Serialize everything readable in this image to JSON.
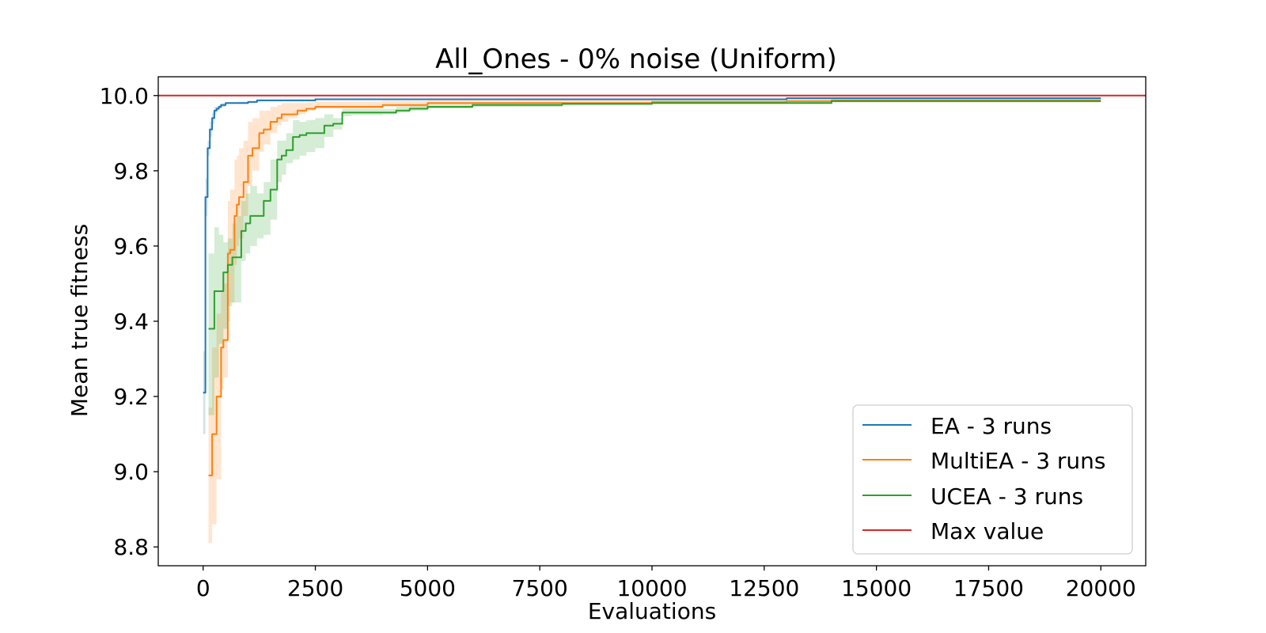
{
  "chart_data": {
    "type": "line",
    "title": "All_Ones - 0% noise (Uniform)",
    "xlabel": "Evaluations",
    "ylabel": "Mean true fitness",
    "xlim": [
      -1000,
      21000
    ],
    "ylim": [
      8.75,
      10.05
    ],
    "xticks": [
      0,
      2500,
      5000,
      7500,
      10000,
      12500,
      15000,
      17500,
      20000
    ],
    "yticks": [
      8.8,
      9.0,
      9.2,
      9.4,
      9.6,
      9.8,
      10.0
    ],
    "ytick_labels": [
      "8.8",
      "9.0",
      "9.2",
      "9.4",
      "9.6",
      "9.8",
      "10.0"
    ],
    "grid": false,
    "legend_position": "lower-right",
    "hline": {
      "name": "Max value",
      "y": 10.0,
      "color": "#d62728"
    },
    "series": [
      {
        "name": "EA - 3 runs",
        "color": "#1f77b4",
        "x": [
          0,
          50,
          100,
          150,
          200,
          250,
          300,
          350,
          400,
          500,
          600,
          800,
          1000,
          1200,
          2500,
          13000,
          20000
        ],
        "y": [
          9.21,
          9.73,
          9.86,
          9.91,
          9.94,
          9.96,
          9.965,
          9.97,
          9.975,
          9.98,
          9.98,
          9.98,
          9.983,
          9.987,
          9.99,
          9.993,
          9.993
        ],
        "lower": [
          9.1,
          9.68,
          9.84,
          9.89,
          9.925,
          9.95,
          9.96,
          9.965,
          9.97,
          9.978,
          9.978,
          9.978,
          9.982,
          9.985,
          9.988,
          9.99,
          9.99
        ],
        "upper": [
          9.32,
          9.78,
          9.88,
          9.93,
          9.955,
          9.97,
          9.972,
          9.976,
          9.98,
          9.983,
          9.983,
          9.984,
          9.986,
          9.99,
          9.992,
          9.996,
          9.996
        ]
      },
      {
        "name": "MultiEA - 3 runs",
        "color": "#ff7f0e",
        "x": [
          120,
          200,
          300,
          400,
          450,
          550,
          600,
          700,
          750,
          800,
          900,
          1000,
          1100,
          1250,
          1350,
          1500,
          1650,
          1750,
          1900,
          2100,
          2300,
          2500,
          3000,
          4000,
          5000,
          7000,
          10000,
          13000,
          14000,
          20000
        ],
        "y": [
          8.99,
          9.1,
          9.2,
          9.33,
          9.35,
          9.58,
          9.59,
          9.68,
          9.71,
          9.73,
          9.77,
          9.84,
          9.86,
          9.9,
          9.91,
          9.93,
          9.94,
          9.95,
          9.95,
          9.96,
          9.965,
          9.97,
          9.97,
          9.975,
          9.98,
          9.98,
          9.983,
          9.985,
          9.987,
          9.987
        ],
        "lower": [
          8.81,
          8.86,
          8.98,
          9.22,
          9.25,
          9.4,
          9.45,
          9.55,
          9.6,
          9.62,
          9.68,
          9.76,
          9.8,
          9.85,
          9.87,
          9.9,
          9.92,
          9.93,
          9.94,
          9.95,
          9.96,
          9.965,
          9.965,
          9.97,
          9.975,
          9.977,
          9.98,
          9.982,
          9.985,
          9.985
        ],
        "upper": [
          9.17,
          9.33,
          9.42,
          9.48,
          9.5,
          9.72,
          9.75,
          9.83,
          9.84,
          9.86,
          9.88,
          9.93,
          9.94,
          9.96,
          9.96,
          9.97,
          9.975,
          9.98,
          9.98,
          9.98,
          9.982,
          9.984,
          9.984,
          9.986,
          9.987,
          9.988,
          9.989,
          9.99,
          9.99,
          9.99
        ]
      },
      {
        "name": "UCEA - 3 runs",
        "color": "#2ca02c",
        "x": [
          120,
          250,
          350,
          450,
          550,
          650,
          750,
          850,
          950,
          1050,
          1200,
          1350,
          1500,
          1650,
          1750,
          1850,
          2000,
          2150,
          2300,
          2500,
          2700,
          2900,
          3100,
          3300,
          4000,
          4300,
          4600,
          5000,
          6000,
          8000,
          10000,
          13500,
          14000,
          20000
        ],
        "y": [
          9.38,
          9.48,
          9.48,
          9.53,
          9.55,
          9.57,
          9.57,
          9.64,
          9.66,
          9.68,
          9.68,
          9.72,
          9.75,
          9.83,
          9.84,
          9.855,
          9.89,
          9.895,
          9.9,
          9.9,
          9.92,
          9.925,
          9.955,
          9.955,
          9.955,
          9.96,
          9.965,
          9.97,
          9.975,
          9.978,
          9.98,
          9.98,
          9.985,
          9.985
        ],
        "lower": [
          9.15,
          9.25,
          9.34,
          9.38,
          9.44,
          9.45,
          9.45,
          9.56,
          9.58,
          9.6,
          9.62,
          9.63,
          9.67,
          9.77,
          9.79,
          9.82,
          9.83,
          9.84,
          9.85,
          9.86,
          9.89,
          9.91,
          9.945,
          9.948,
          9.95,
          9.955,
          9.96,
          9.965,
          9.97,
          9.975,
          9.978,
          9.978,
          9.982,
          9.982
        ],
        "upper": [
          9.58,
          9.65,
          9.63,
          9.61,
          9.62,
          9.66,
          9.68,
          9.72,
          9.74,
          9.76,
          9.74,
          9.77,
          9.83,
          9.88,
          9.88,
          9.9,
          9.935,
          9.93,
          9.935,
          9.94,
          9.95,
          9.94,
          9.965,
          9.965,
          9.965,
          9.97,
          9.972,
          9.975,
          9.98,
          9.981,
          9.982,
          9.983,
          9.988,
          9.988
        ]
      }
    ]
  }
}
